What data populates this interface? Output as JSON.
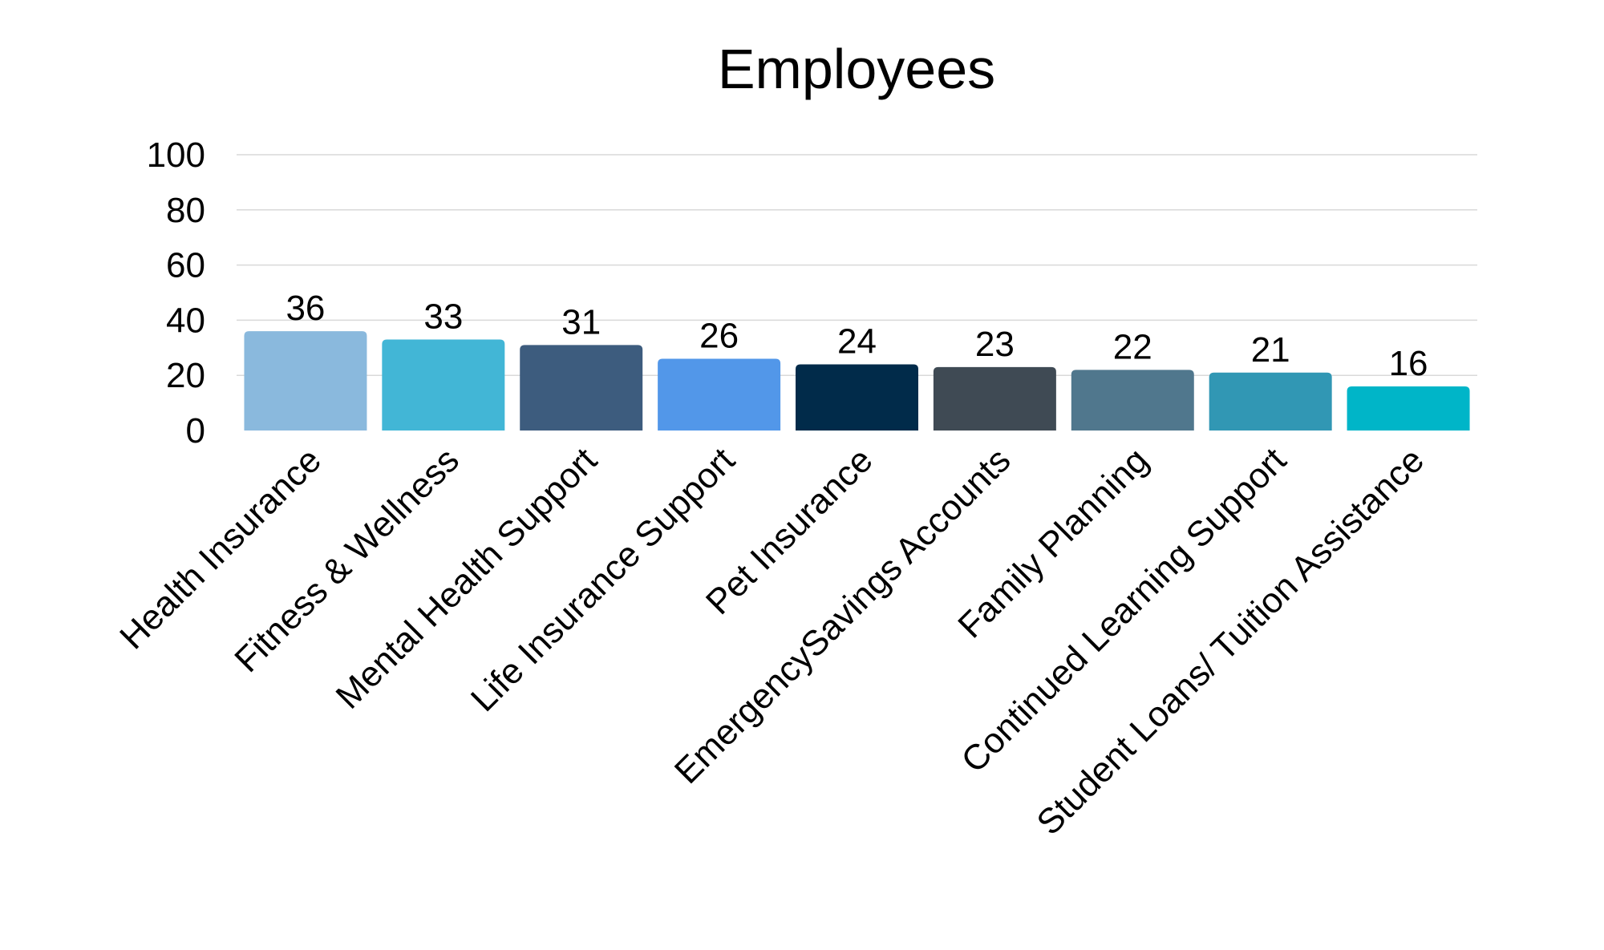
{
  "chart_data": {
    "type": "bar",
    "title": "Employees",
    "xlabel": "",
    "ylabel": "",
    "ylim": [
      0,
      100
    ],
    "yticks": [
      "0",
      "20",
      "40",
      "60",
      "80",
      "100"
    ],
    "grid": true,
    "legend": "none",
    "categories": [
      "Health Insurance",
      "Fitness & Wellness",
      "Mental Health Support",
      "Life Insurance Support",
      "Pet Insurance",
      "EmergencySavings Accounts",
      "Family Planning",
      "Continued Learning Support",
      "Student Loans/ Tuition Assistance"
    ],
    "values": [
      36,
      33,
      31,
      26,
      24,
      23,
      22,
      21,
      16
    ],
    "data_labels": [
      "36",
      "33",
      "31",
      "26",
      "24",
      "23",
      "22",
      "21",
      "16"
    ],
    "colors": [
      "#8AB9DD",
      "#42B6D6",
      "#3D5C7E",
      "#5297E9",
      "#012B4A",
      "#3F4A54",
      "#50778D",
      "#3197B4",
      "#00B5C8"
    ],
    "grid_color": "#D9D9D9"
  }
}
